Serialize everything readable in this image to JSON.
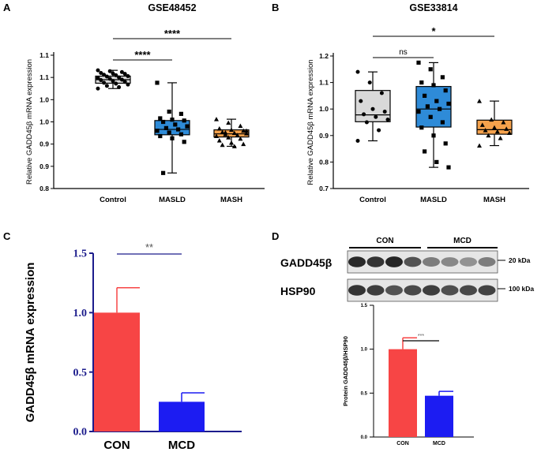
{
  "colors": {
    "box_grey": "#d9d9d9",
    "box_blue": "#2e8bd8",
    "box_orange": "#f5a24c",
    "bar_red": "#f74545",
    "bar_blue": "#1c1cf2",
    "axis_navy": "#1c1c8c"
  },
  "panel_labels": [
    "A",
    "B",
    "C",
    "D"
  ],
  "chart_data": [
    {
      "panel": "A",
      "type": "box",
      "title": "GSE48452",
      "xlabel": "",
      "ylabel": "Relative GADD45β mRNA expression",
      "ylim": [
        0.8,
        1.1
      ],
      "yticks": [
        0.8,
        0.85,
        0.9,
        0.95,
        1.0,
        1.05,
        1.1
      ],
      "ytick_labels": [
        "0.8",
        "0.9",
        "0.9",
        "1.0",
        "1.0",
        "1.1",
        "1.1"
      ],
      "categories": [
        "Control",
        "MASLD",
        "MASH"
      ],
      "boxes": [
        {
          "min": 1.025,
          "q1": 1.037,
          "median": 1.045,
          "q3": 1.053,
          "max": 1.066,
          "points": [
            1.066,
            1.064,
            1.062,
            1.06,
            1.059,
            1.058,
            1.056,
            1.055,
            1.053,
            1.052,
            1.05,
            1.049,
            1.047,
            1.045,
            1.044,
            1.042,
            1.04,
            1.038,
            1.036,
            1.034,
            1.031,
            1.028,
            1.025
          ]
        },
        {
          "min": 0.835,
          "q1": 0.921,
          "median": 0.933,
          "q3": 0.953,
          "max": 1.038,
          "points": [
            1.038,
            0.973,
            0.968,
            0.958,
            0.955,
            0.953,
            0.95,
            0.944,
            0.94,
            0.936,
            0.933,
            0.93,
            0.926,
            0.922,
            0.918,
            0.913,
            0.905,
            0.835
          ]
        },
        {
          "min": 0.895,
          "q1": 0.916,
          "median": 0.923,
          "q3": 0.932,
          "max": 0.956,
          "points": [
            0.956,
            0.948,
            0.941,
            0.935,
            0.932,
            0.93,
            0.927,
            0.925,
            0.924,
            0.922,
            0.92,
            0.918,
            0.915,
            0.912,
            0.908,
            0.903,
            0.9,
            0.898,
            0.895,
            0.93,
            0.926
          ]
        }
      ],
      "significance": [
        {
          "from": "Control",
          "to": "MASLD",
          "label": "****"
        },
        {
          "from": "Control",
          "to": "MASH",
          "label": "****"
        }
      ]
    },
    {
      "panel": "B",
      "type": "box",
      "title": "GSE33814",
      "xlabel": "",
      "ylabel": "Relative GADD45β mRNA expression",
      "ylim": [
        0.7,
        1.2
      ],
      "yticks": [
        0.7,
        0.8,
        0.9,
        1.0,
        1.1,
        1.2
      ],
      "ytick_labels": [
        "0.7",
        "0.8",
        "0.9",
        "1.0",
        "1.1",
        "1.2"
      ],
      "categories": [
        "Control",
        "MASLD",
        "MASH"
      ],
      "boxes": [
        {
          "min": 0.88,
          "q1": 0.952,
          "median": 0.978,
          "q3": 1.07,
          "max": 1.14,
          "points": [
            1.14,
            1.1,
            1.06,
            1.03,
            1.0,
            0.99,
            0.98,
            0.97,
            0.96,
            0.95,
            0.92,
            0.88
          ]
        },
        {
          "min": 0.78,
          "q1": 0.932,
          "median": 1.0,
          "q3": 1.085,
          "max": 1.175,
          "points": [
            1.175,
            1.15,
            1.12,
            1.1,
            1.09,
            1.07,
            1.05,
            1.03,
            1.02,
            1.01,
            1.0,
            0.99,
            0.97,
            0.95,
            0.93,
            0.9,
            0.87,
            0.84,
            0.8,
            0.78
          ]
        },
        {
          "min": 0.862,
          "q1": 0.905,
          "median": 0.922,
          "q3": 0.958,
          "max": 1.03,
          "points": [
            1.03,
            0.96,
            0.95,
            0.94,
            0.93,
            0.925,
            0.92,
            0.915,
            0.91,
            0.9,
            0.89,
            0.862
          ]
        }
      ],
      "significance": [
        {
          "from": "Control",
          "to": "MASLD",
          "label": "ns"
        },
        {
          "from": "Control",
          "to": "MASH",
          "label": "*"
        }
      ]
    },
    {
      "panel": "C",
      "type": "bar",
      "title": "",
      "xlabel": "",
      "ylabel": "GADD45β mRNA expression",
      "ylim": [
        0,
        1.5
      ],
      "yticks": [
        0.0,
        0.5,
        1.0,
        1.5
      ],
      "ytick_labels": [
        "0.0",
        "0.5",
        "1.0",
        "1.5"
      ],
      "categories": [
        "CON",
        "MCD"
      ],
      "values": [
        1.0,
        0.25
      ],
      "errors": [
        0.21,
        0.075
      ],
      "significance": [
        {
          "from": "CON",
          "to": "MCD",
          "label": "**"
        }
      ]
    },
    {
      "panel": "D",
      "type": "bar",
      "title": "",
      "xlabel": "",
      "ylabel": "Protein GADD45β/HSP90",
      "ylim": [
        0,
        1.5
      ],
      "yticks": [
        0.0,
        0.5,
        1.0,
        1.5
      ],
      "ytick_labels": [
        "0.0",
        "0.5",
        "1.0",
        "1.5"
      ],
      "categories": [
        "CON",
        "MCD"
      ],
      "values": [
        1.0,
        0.47
      ],
      "errors": [
        0.13,
        0.05
      ],
      "significance": [
        {
          "from": "CON",
          "to": "MCD",
          "label": "***"
        }
      ]
    }
  ],
  "western_blot": {
    "groups": [
      "CON",
      "MCD"
    ],
    "rows": [
      {
        "label": "GADD45β",
        "marker": "20 kDa",
        "intensities": [
          0.9,
          0.85,
          0.92,
          0.7,
          0.5,
          0.45,
          0.4,
          0.5
        ]
      },
      {
        "label": "HSP90",
        "marker": "100 kDa",
        "intensities": [
          0.85,
          0.8,
          0.7,
          0.75,
          0.8,
          0.72,
          0.75,
          0.78
        ]
      }
    ]
  }
}
